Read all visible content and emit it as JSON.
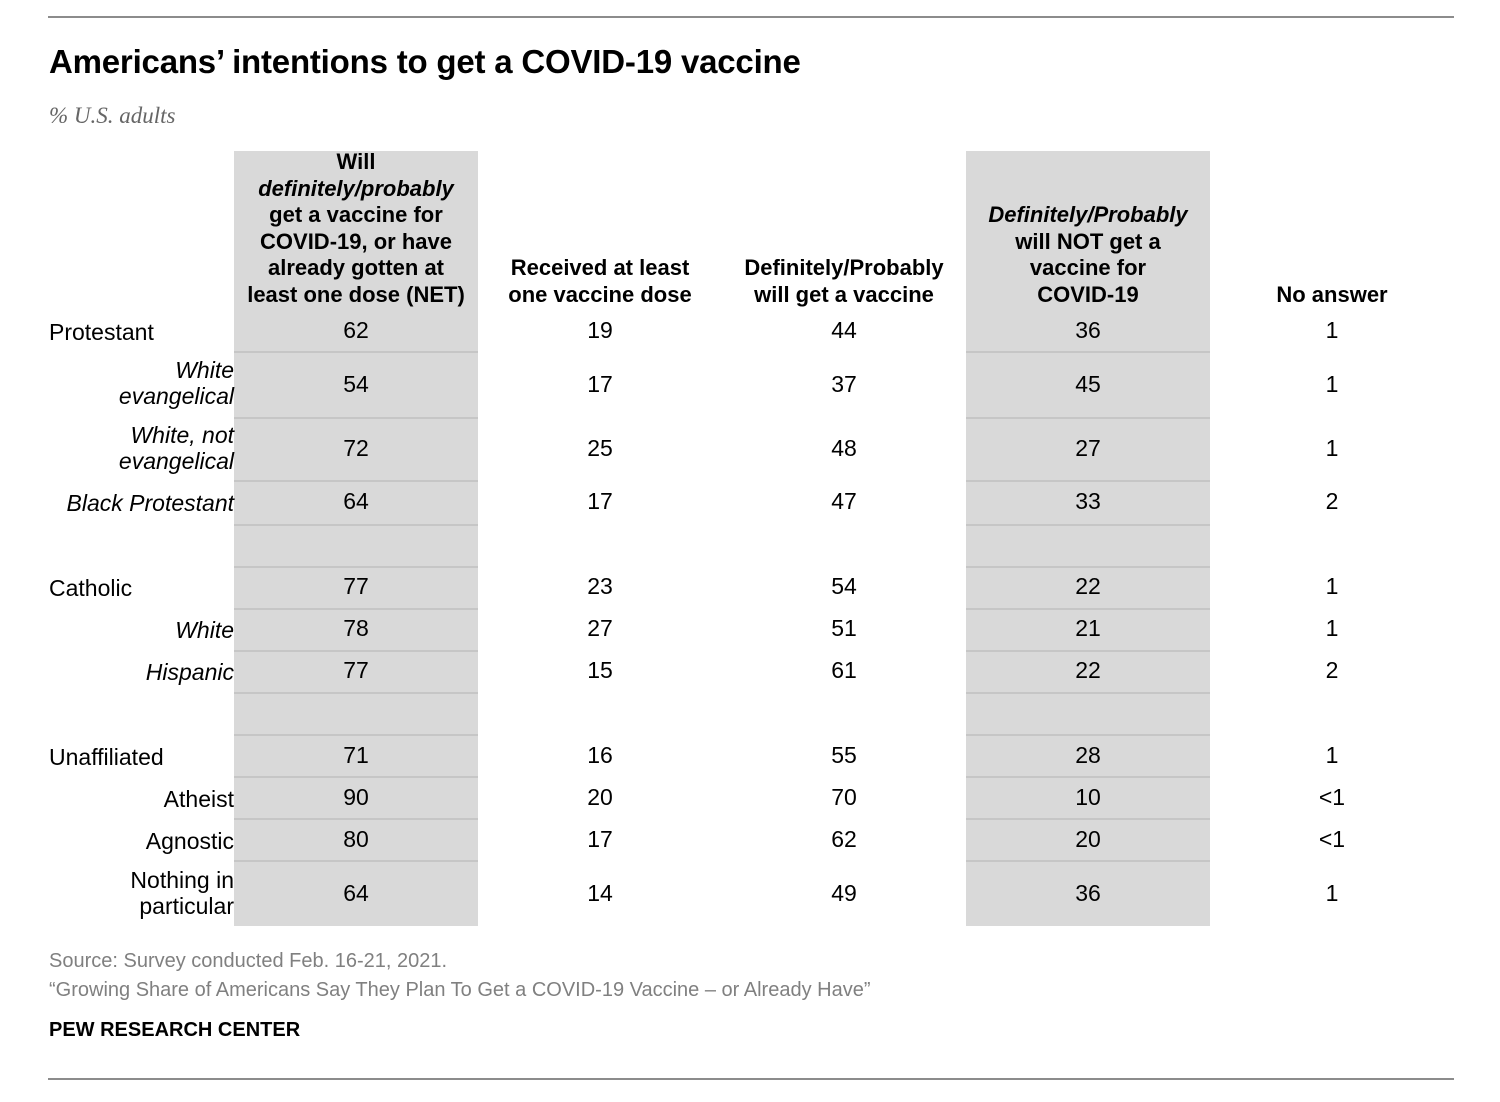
{
  "title": "Americans’ intentions to get a COVID-19 vaccine",
  "subtitle": "% U.S. adults",
  "chart_data": {
    "type": "table",
    "title": "Americans’ intentions to get a COVID-19 vaccine",
    "unit": "% U.S. adults",
    "columns": [
      {
        "lines": [
          "Will",
          "definitely/probably",
          "get a vaccine for",
          "COVID-19, or have",
          "already gotten at",
          "least one dose (NET)"
        ],
        "italic_line": 1,
        "shaded": true
      },
      {
        "lines": [
          "Received at least",
          "one vaccine dose"
        ],
        "shaded": false
      },
      {
        "lines": [
          "Definitely/Probably",
          "will get a vaccine"
        ],
        "shaded": false
      },
      {
        "lines": [
          "Definitely/Probably",
          "will NOT get a",
          "vaccine for",
          "COVID-19"
        ],
        "italic_line": 0,
        "shaded": true
      },
      {
        "lines": [
          "No answer"
        ],
        "shaded": false
      }
    ],
    "rows": [
      {
        "label": [
          "Protestant"
        ],
        "style": "main",
        "values": [
          "62",
          "19",
          "44",
          "36",
          "1"
        ]
      },
      {
        "label": [
          "White",
          "evangelical"
        ],
        "style": "sub",
        "values": [
          "54",
          "17",
          "37",
          "45",
          "1"
        ]
      },
      {
        "label": [
          "White, not",
          "evangelical"
        ],
        "style": "sub",
        "values": [
          "72",
          "25",
          "48",
          "27",
          "1"
        ]
      },
      {
        "label": [
          "Black Protestant"
        ],
        "style": "sub",
        "values": [
          "64",
          "17",
          "47",
          "33",
          "2"
        ]
      },
      {
        "label": [
          "Catholic"
        ],
        "style": "main",
        "values": [
          "77",
          "23",
          "54",
          "22",
          "1"
        ]
      },
      {
        "label": [
          "White"
        ],
        "style": "sub",
        "values": [
          "78",
          "27",
          "51",
          "21",
          "1"
        ]
      },
      {
        "label": [
          "Hispanic"
        ],
        "style": "sub",
        "values": [
          "77",
          "15",
          "61",
          "22",
          "2"
        ]
      },
      {
        "label": [
          "Unaffiliated"
        ],
        "style": "main",
        "values": [
          "71",
          "16",
          "55",
          "28",
          "1"
        ]
      },
      {
        "label": [
          "Atheist"
        ],
        "style": "subnorm",
        "values": [
          "90",
          "20",
          "70",
          "10",
          "<1"
        ]
      },
      {
        "label": [
          "Agnostic"
        ],
        "style": "subnorm",
        "values": [
          "80",
          "17",
          "62",
          "20",
          "<1"
        ]
      },
      {
        "label": [
          "Nothing in",
          "particular"
        ],
        "style": "subnorm",
        "values": [
          "64",
          "14",
          "49",
          "36",
          "1"
        ]
      }
    ]
  },
  "footer": {
    "source": "Source: Survey conducted Feb. 16-21, 2021.",
    "report": "“Growing Share of Americans Say They Plan To Get a COVID-19 Vaccine – or Already Have”",
    "brand": "PEW RESEARCH CENTER"
  },
  "colors": {
    "shade": "#d9d9d9",
    "muted": "#808080",
    "rule": "#8c8c8c"
  }
}
